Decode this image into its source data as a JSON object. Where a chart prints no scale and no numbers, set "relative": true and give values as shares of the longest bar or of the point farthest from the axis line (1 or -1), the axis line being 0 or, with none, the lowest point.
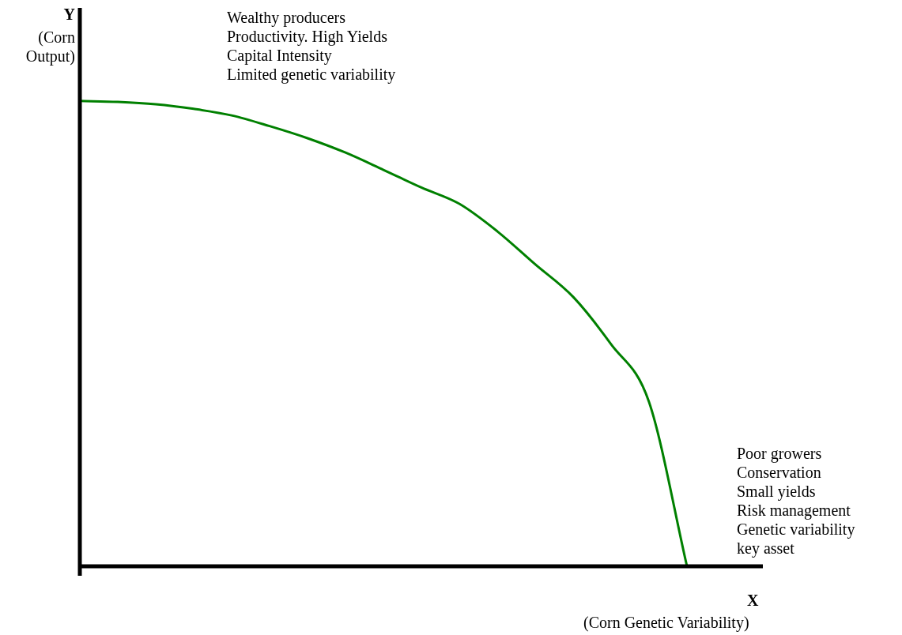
{
  "chart_data": {
    "type": "line",
    "relative": true,
    "xlabel": "X (Corn Genetic Variability)",
    "ylabel": "Y (Corn Output)",
    "categories": [
      null,
      null,
      null,
      null,
      null,
      null,
      null,
      null,
      null,
      null,
      null,
      null,
      null,
      null,
      null,
      null,
      null,
      null,
      null
    ],
    "series": [
      {
        "color": "#008000",
        "values": [
          1,
          0.998,
          0.993,
          0.983,
          0.969,
          0.946,
          0.92,
          0.889,
          0.852,
          0.814,
          0.779,
          0.72,
          0.649,
          0.579,
          0.477,
          0.353,
          0,
          null,
          null
        ]
      }
    ],
    "annotations": [
      "Wealthy producers\nProductivity. High Yields\nCapital Intensity\nLimited genetic variability",
      "Poor growers\nConservation\nSmall yields\nRisk management\nGenetic variability\nkey asset"
    ],
    "legend": false,
    "marker": "none"
  }
}
